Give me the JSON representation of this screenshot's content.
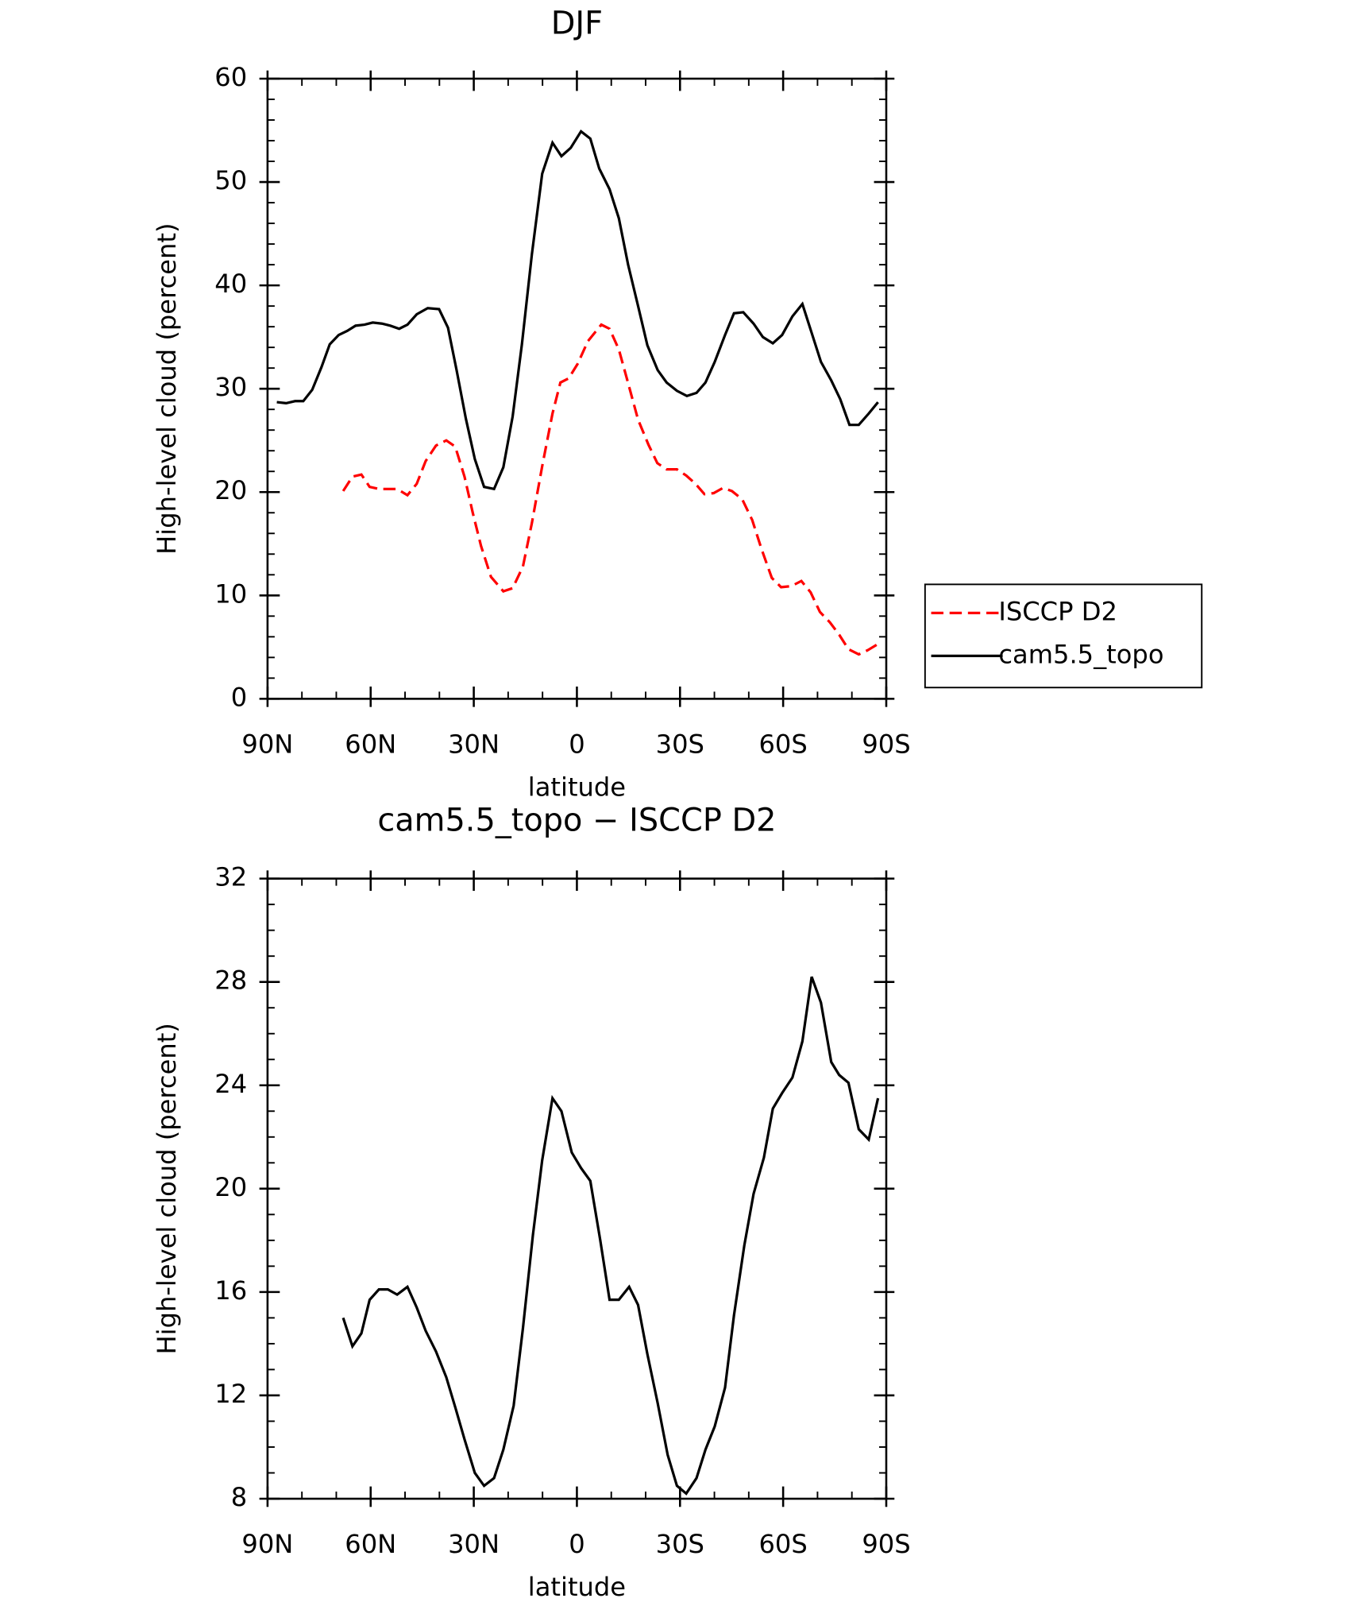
{
  "chart_data": [
    {
      "type": "line",
      "title": "DJF",
      "xlabel": "latitude",
      "ylabel": "High-level cloud (percent)",
      "xlim": [
        90,
        -90
      ],
      "xticks": [
        {
          "value": 90,
          "label": "90N"
        },
        {
          "value": 60,
          "label": "60N"
        },
        {
          "value": 30,
          "label": "30N"
        },
        0,
        {
          "value": -30,
          "label": "30S"
        },
        {
          "value": -60,
          "label": "60S"
        },
        {
          "value": -90,
          "label": "90S"
        }
      ],
      "ylim": [
        0,
        60
      ],
      "yticks": [
        0,
        10,
        20,
        30,
        40,
        50,
        60
      ],
      "legend": "right",
      "series": [
        {
          "name": "ISCCP D2",
          "color": "#ff0000",
          "dash": true,
          "x": [
            68.0,
            65.3,
            62.7,
            60.3,
            57.6,
            55.0,
            52.3,
            49.3,
            46.6,
            44.0,
            41.0,
            38.0,
            35.4,
            32.7,
            30.3,
            27.9,
            25.0,
            21.4,
            18.7,
            15.7,
            13.1,
            10.1,
            7.1,
            4.8,
            2.4,
            -0.2,
            -3.2,
            -7.1,
            -9.5,
            -12.2,
            -15.1,
            -17.8,
            -20.8,
            -23.4,
            -26.1,
            -29.1,
            -31.8,
            -34.5,
            -37.1,
            -39.8,
            -42.5,
            -45.1,
            -48.1,
            -51.0,
            -53.7,
            -56.7,
            -59.4,
            -62.4,
            -65.3,
            -68.0,
            -70.7,
            -73.6,
            -76.3,
            -79.0,
            -82.0,
            -84.6,
            -87.6
          ],
          "values": [
            20.1,
            21.5,
            21.7,
            20.5,
            20.3,
            20.3,
            20.3,
            19.7,
            20.8,
            23.0,
            24.5,
            25.0,
            24.4,
            21.5,
            18.0,
            14.8,
            11.8,
            10.4,
            10.7,
            12.8,
            17.0,
            22.5,
            27.6,
            30.6,
            31.0,
            32.4,
            34.6,
            36.2,
            35.8,
            33.8,
            30.3,
            27.0,
            24.6,
            22.8,
            22.2,
            22.2,
            21.6,
            20.8,
            19.8,
            19.9,
            20.4,
            20.1,
            19.3,
            17.3,
            14.5,
            11.7,
            10.8,
            10.9,
            11.4,
            10.3,
            8.4,
            7.4,
            6.2,
            4.8,
            4.3,
            4.7,
            5.3
          ]
        },
        {
          "name": "cam5.5_topo",
          "color": "#000000",
          "dash": false,
          "x": [
            87.3,
            84.6,
            82.0,
            79.6,
            77.0,
            74.3,
            71.9,
            69.3,
            66.8,
            64.4,
            61.8,
            59.4,
            56.7,
            54.3,
            51.7,
            49.3,
            46.6,
            43.4,
            40.1,
            37.5,
            35.0,
            32.3,
            29.7,
            27.0,
            24.1,
            21.4,
            18.7,
            16.0,
            13.1,
            10.1,
            7.1,
            4.5,
            1.8,
            -1.2,
            -3.9,
            -6.5,
            -9.5,
            -12.2,
            -14.9,
            -17.8,
            -20.5,
            -23.5,
            -26.1,
            -29.1,
            -32.0,
            -34.8,
            -37.4,
            -40.1,
            -43.1,
            -45.7,
            -48.4,
            -51.4,
            -54.1,
            -57.0,
            -59.7,
            -62.7,
            -65.6,
            -68.3,
            -71.0,
            -74.0,
            -76.6,
            -79.3,
            -82.0,
            -84.9,
            -87.6
          ],
          "values": [
            28.7,
            28.6,
            28.8,
            28.8,
            29.9,
            32.1,
            34.3,
            35.2,
            35.6,
            36.1,
            36.2,
            36.4,
            36.3,
            36.1,
            35.8,
            36.2,
            37.2,
            37.8,
            37.7,
            35.9,
            31.8,
            27.1,
            23.2,
            20.5,
            20.3,
            22.4,
            27.3,
            34.3,
            43.0,
            50.8,
            53.8,
            52.5,
            53.3,
            54.9,
            54.2,
            51.3,
            49.3,
            46.5,
            42.0,
            38.0,
            34.2,
            31.8,
            30.6,
            29.8,
            29.3,
            29.6,
            30.6,
            32.6,
            35.2,
            37.3,
            37.4,
            36.3,
            35.0,
            34.4,
            35.2,
            37.0,
            38.2,
            35.4,
            32.6,
            30.8,
            29.0,
            26.5,
            26.5,
            27.6,
            28.7
          ]
        }
      ]
    },
    {
      "type": "line",
      "title": "cam5.5_topo − ISCCP D2",
      "xlabel": "latitude",
      "ylabel": "High-level cloud (percent)",
      "xlim": [
        90,
        -90
      ],
      "xticks": [
        {
          "value": 90,
          "label": "90N"
        },
        {
          "value": 60,
          "label": "60N"
        },
        {
          "value": 30,
          "label": "30N"
        },
        0,
        {
          "value": -30,
          "label": "30S"
        },
        {
          "value": -60,
          "label": "60S"
        },
        {
          "value": -90,
          "label": "90S"
        }
      ],
      "ylim": [
        8,
        32
      ],
      "yticks": [
        8,
        12,
        16,
        20,
        24,
        28,
        32
      ],
      "series": [
        {
          "color": "#000000",
          "dash": false,
          "x": [
            68.0,
            65.3,
            62.7,
            60.3,
            57.6,
            55.0,
            52.3,
            49.3,
            46.6,
            44.0,
            41.0,
            38.0,
            35.3,
            32.7,
            29.7,
            27.0,
            24.1,
            21.4,
            18.4,
            15.7,
            12.8,
            10.1,
            7.1,
            4.5,
            1.5,
            -1.2,
            -3.9,
            -6.8,
            -9.5,
            -12.2,
            -15.2,
            -17.8,
            -20.5,
            -23.5,
            -26.4,
            -29.1,
            -31.8,
            -34.8,
            -37.4,
            -40.1,
            -43.1,
            -45.7,
            -48.7,
            -51.4,
            -54.4,
            -57.0,
            -59.7,
            -62.7,
            -65.6,
            -68.3,
            -71.0,
            -74.0,
            -76.3,
            -79.0,
            -82.0,
            -84.9,
            -87.6
          ],
          "values": [
            15.0,
            13.9,
            14.4,
            15.7,
            16.1,
            16.1,
            15.9,
            16.2,
            15.4,
            14.5,
            13.7,
            12.7,
            11.5,
            10.3,
            9.0,
            8.5,
            8.8,
            9.9,
            11.6,
            14.6,
            18.2,
            21.1,
            23.5,
            23.0,
            21.4,
            20.8,
            20.3,
            18.0,
            15.7,
            15.7,
            16.2,
            15.5,
            13.6,
            11.7,
            9.7,
            8.5,
            8.2,
            8.8,
            9.9,
            10.8,
            12.3,
            15.1,
            17.8,
            19.8,
            21.2,
            23.1,
            23.7,
            24.3,
            25.7,
            28.2,
            27.2,
            24.9,
            24.4,
            24.1,
            22.3,
            21.9,
            23.5
          ]
        }
      ]
    }
  ]
}
